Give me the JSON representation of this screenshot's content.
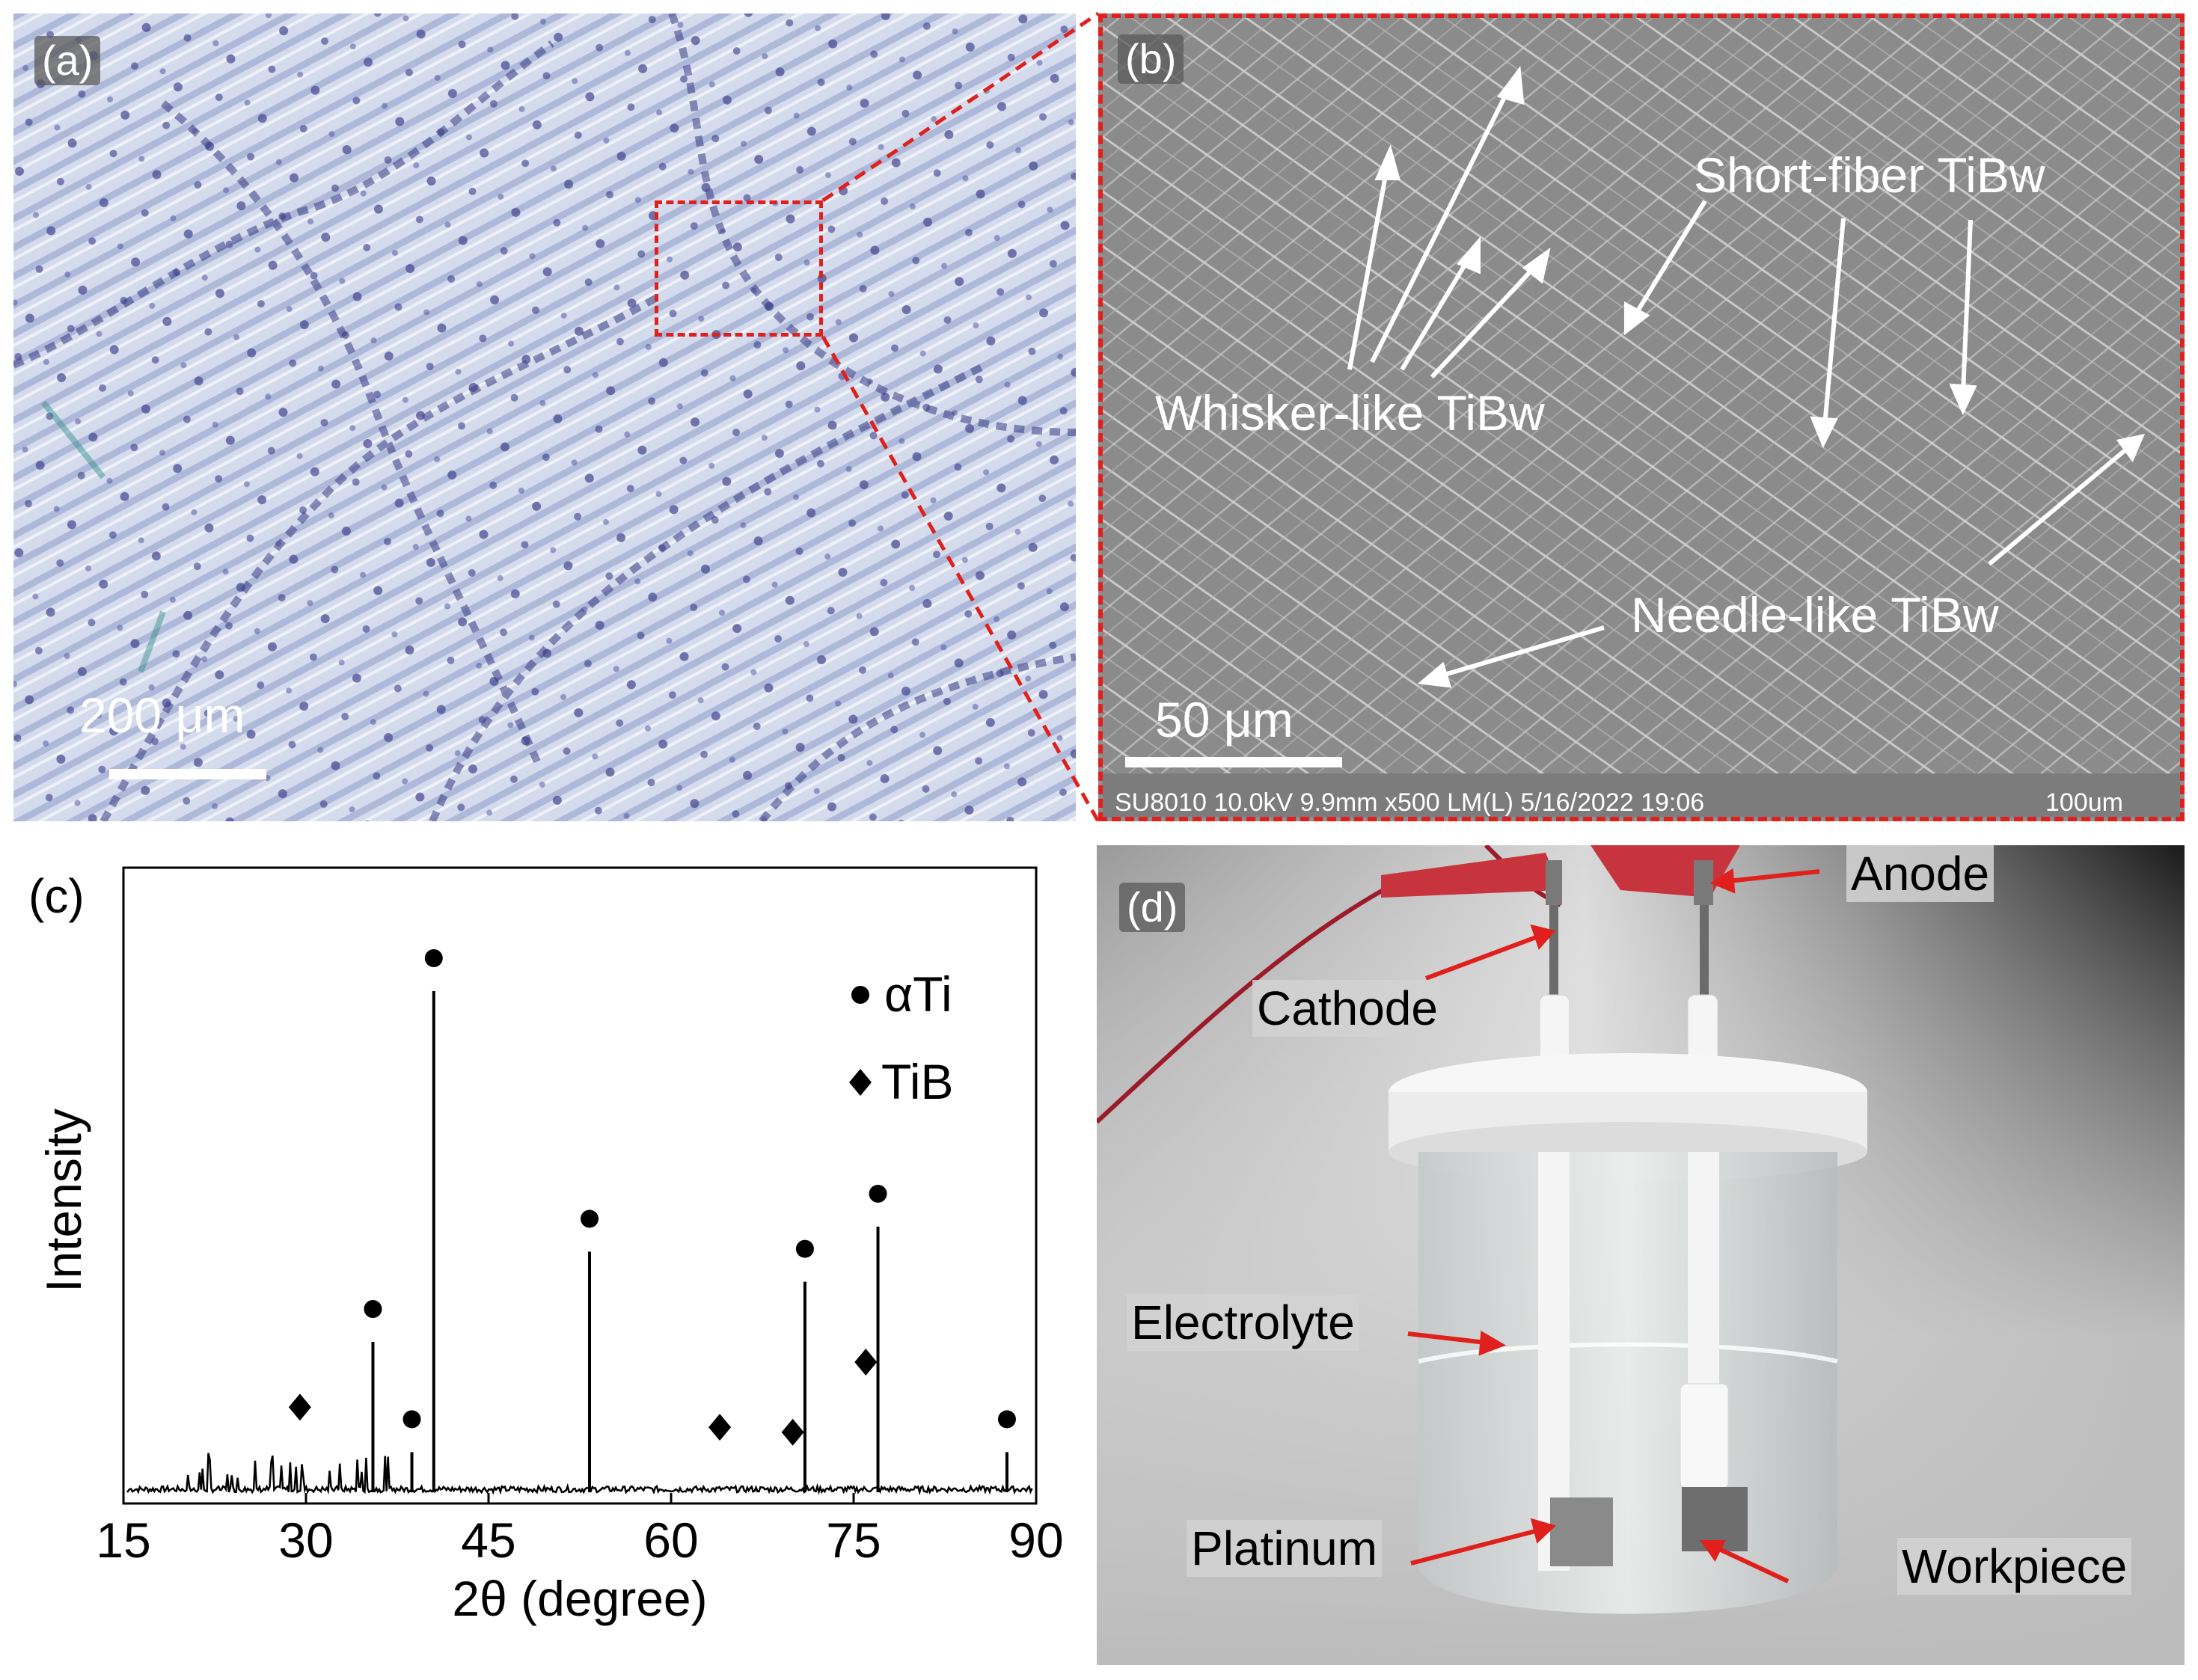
{
  "panel_a": {
    "label": "(a)",
    "scale_text": "200 μm"
  },
  "panel_b": {
    "label": "(b)",
    "scale_text": "50 μm",
    "annotations": {
      "whisker": "Whisker-like TiBw",
      "short_fiber": "Short-fiber TiBw",
      "needle": "Needle-like TiBw"
    },
    "footer_info": "SU8010 10.0kV 9.9mm x500 LM(L) 5/16/2022 19:06",
    "footer_scale": "100um"
  },
  "panel_c": {
    "label": "(c)",
    "chart_data": {
      "type": "line",
      "xlabel": "2θ (degree)",
      "ylabel": "Intensity",
      "xlim": [
        15,
        90
      ],
      "xticks": [
        "15",
        "30",
        "45",
        "60",
        "75",
        "90"
      ],
      "legend": [
        {
          "marker": "circle",
          "label": "αTi"
        },
        {
          "marker": "diamond",
          "label": "TiB"
        }
      ],
      "legend_position": "top-right",
      "peaks": [
        {
          "x": 35.5,
          "y": 0.3,
          "phase": "αTi"
        },
        {
          "x": 38.7,
          "y": 0.08,
          "phase": "αTi"
        },
        {
          "x": 40.5,
          "y": 1.0,
          "phase": "αTi"
        },
        {
          "x": 53.3,
          "y": 0.48,
          "phase": "αTi"
        },
        {
          "x": 71.0,
          "y": 0.42,
          "phase": "αTi"
        },
        {
          "x": 77.0,
          "y": 0.53,
          "phase": "αTi"
        },
        {
          "x": 87.6,
          "y": 0.08,
          "phase": "αTi"
        }
      ],
      "tib_markers": [
        {
          "x": 29.5,
          "y": 0.11
        },
        {
          "x": 64.0,
          "y": 0.07
        },
        {
          "x": 70.0,
          "y": 0.06
        },
        {
          "x": 76.0,
          "y": 0.2
        }
      ],
      "phase_labels": {
        "alpha": "αTi",
        "tib": "TiB"
      }
    }
  },
  "panel_d": {
    "label": "(d)",
    "annotations": {
      "anode": "Anode",
      "cathode": "Cathode",
      "electrolyte": "Electrolyte",
      "platinum": "Platinum",
      "workpiece": "Workpiece"
    }
  },
  "colors": {
    "inset_box": "#e0201c",
    "arrow_red": "#e0201c",
    "arrow_white": "#ffffff",
    "optical_bg": "#c9d2e6",
    "optical_grain": "#3a3c8a",
    "sem_bg": "#8e8e8e"
  }
}
